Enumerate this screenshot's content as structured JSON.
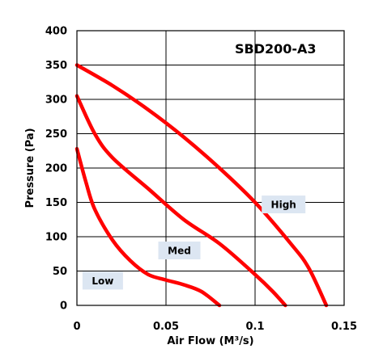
{
  "chart_data": {
    "type": "line",
    "title": "SBD200-A3",
    "xlabel": "Air Flow (M³/s)",
    "ylabel": "Pressure (Pa)",
    "xlim": [
      0,
      0.15
    ],
    "ylim": [
      0,
      400
    ],
    "x_ticks": [
      "0",
      "0.05",
      "0.1",
      "0.15"
    ],
    "y_ticks": [
      "0",
      "50",
      "100",
      "150",
      "200",
      "250",
      "300",
      "350",
      "400"
    ],
    "grid": true,
    "series": [
      {
        "name": "High",
        "color": "#ff0000",
        "x": [
          0,
          0.02,
          0.04,
          0.06,
          0.08,
          0.1,
          0.12,
          0.13,
          0.14
        ],
        "y": [
          350,
          320,
          285,
          245,
          200,
          150,
          90,
          55,
          0
        ]
      },
      {
        "name": "Med",
        "color": "#ff0000",
        "x": [
          0,
          0.01,
          0.02,
          0.04,
          0.06,
          0.08,
          0.1,
          0.11,
          0.117
        ],
        "y": [
          305,
          250,
          215,
          170,
          125,
          90,
          45,
          20,
          0
        ]
      },
      {
        "name": "Low",
        "color": "#ff0000",
        "x": [
          0,
          0.005,
          0.01,
          0.02,
          0.03,
          0.04,
          0.05,
          0.06,
          0.07,
          0.08
        ],
        "y": [
          228,
          180,
          140,
          95,
          65,
          45,
          37,
          30,
          20,
          0
        ]
      }
    ]
  }
}
